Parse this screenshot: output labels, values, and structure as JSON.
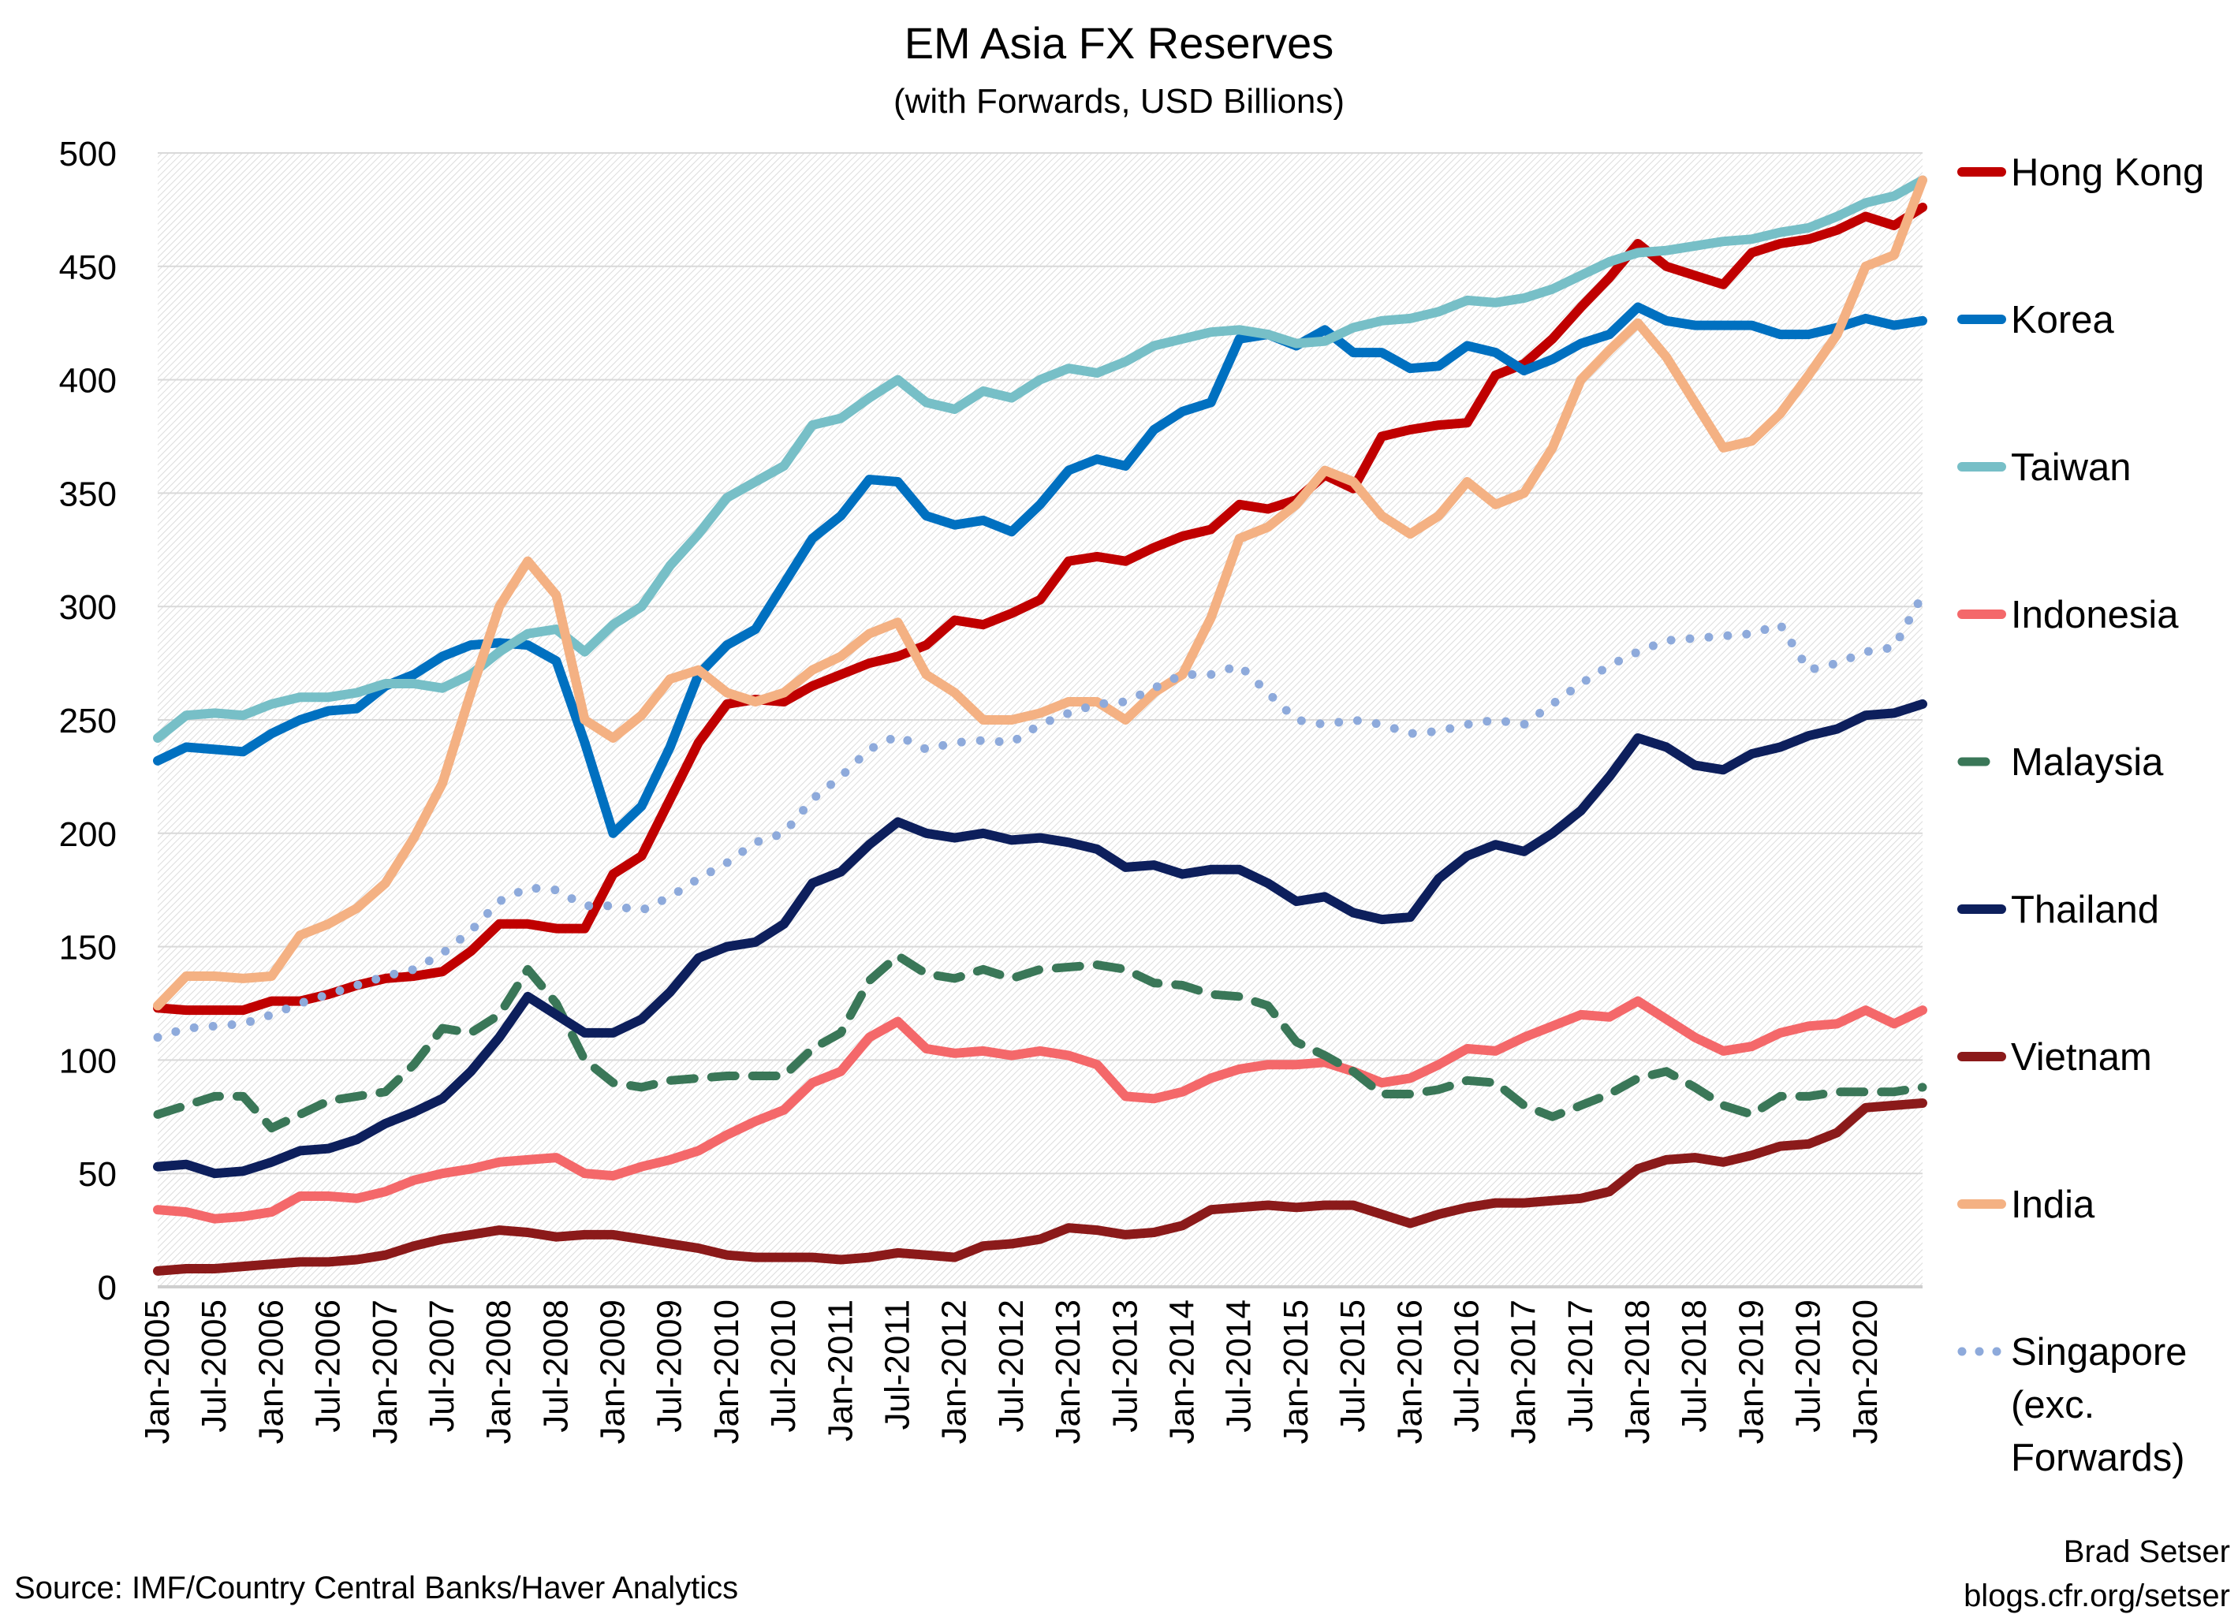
{
  "chart_data": {
    "type": "line",
    "title": "EM Asia FX Reserves",
    "subtitle": "(with Forwards, USD Billions)",
    "ylim": [
      0,
      500
    ],
    "yticks": [
      0,
      50,
      100,
      150,
      200,
      250,
      300,
      350,
      400,
      450,
      500
    ],
    "grid": true,
    "legend_position": "right",
    "xtick_labels": [
      "Jan-2005",
      "Jul-2005",
      "Jan-2006",
      "Jul-2006",
      "Jan-2007",
      "Jul-2007",
      "Jan-2008",
      "Jul-2008",
      "Jan-2009",
      "Jul-2009",
      "Jan-2010",
      "Jul-2010",
      "Jan-2011",
      "Jul-2011",
      "Jan-2012",
      "Jul-2012",
      "Jan-2013",
      "Jul-2013",
      "Jan-2014",
      "Jul-2014",
      "Jan-2015",
      "Jul-2015",
      "Jan-2016",
      "Jul-2016",
      "Jan-2017",
      "Jul-2017",
      "Jan-2018",
      "Jul-2018",
      "Jan-2019",
      "Jul-2019",
      "Jan-2020"
    ],
    "x": [
      "2005-01",
      "2005-04",
      "2005-07",
      "2005-10",
      "2006-01",
      "2006-04",
      "2006-07",
      "2006-10",
      "2007-01",
      "2007-04",
      "2007-07",
      "2007-10",
      "2008-01",
      "2008-04",
      "2008-07",
      "2008-10",
      "2009-01",
      "2009-04",
      "2009-07",
      "2009-10",
      "2010-01",
      "2010-04",
      "2010-07",
      "2010-10",
      "2011-01",
      "2011-04",
      "2011-07",
      "2011-10",
      "2012-01",
      "2012-04",
      "2012-07",
      "2012-10",
      "2013-01",
      "2013-04",
      "2013-07",
      "2013-10",
      "2014-01",
      "2014-04",
      "2014-07",
      "2014-10",
      "2015-01",
      "2015-04",
      "2015-07",
      "2015-10",
      "2016-01",
      "2016-04",
      "2016-07",
      "2016-10",
      "2017-01",
      "2017-04",
      "2017-07",
      "2017-10",
      "2018-01",
      "2018-04",
      "2018-07",
      "2018-10",
      "2019-01",
      "2019-04",
      "2019-07",
      "2019-10",
      "2020-01",
      "2020-04",
      "2020-07"
    ],
    "series": [
      {
        "name": "Hong Kong",
        "color": "#c00000",
        "style": "solid",
        "values": [
          123,
          122,
          122,
          122,
          126,
          126,
          129,
          133,
          136,
          137,
          139,
          148,
          160,
          160,
          158,
          158,
          182,
          190,
          215,
          240,
          257,
          259,
          258,
          265,
          270,
          275,
          278,
          283,
          294,
          292,
          297,
          303,
          320,
          322,
          320,
          326,
          331,
          334,
          345,
          343,
          347,
          358,
          352,
          375,
          378,
          380,
          381,
          402,
          407,
          418,
          432,
          445,
          460,
          450,
          446,
          442,
          456,
          460,
          462,
          466,
          472,
          468,
          476
        ]
      },
      {
        "name": "Korea",
        "color": "#0070c0",
        "style": "solid",
        "values": [
          232,
          238,
          237,
          236,
          244,
          250,
          254,
          255,
          265,
          270,
          278,
          283,
          284,
          283,
          276,
          240,
          200,
          212,
          238,
          270,
          283,
          290,
          310,
          330,
          340,
          356,
          355,
          340,
          336,
          338,
          333,
          345,
          360,
          365,
          362,
          378,
          386,
          390,
          418,
          420,
          415,
          422,
          412,
          412,
          405,
          406,
          415,
          412,
          404,
          409,
          416,
          420,
          432,
          426,
          424,
          424,
          424,
          420,
          420,
          423,
          427,
          424,
          426
        ]
      },
      {
        "name": "Taiwan",
        "color": "#77bfc7",
        "style": "solid",
        "values": [
          242,
          252,
          253,
          252,
          257,
          260,
          260,
          262,
          266,
          266,
          264,
          270,
          280,
          288,
          290,
          280,
          292,
          300,
          318,
          332,
          348,
          355,
          362,
          380,
          383,
          392,
          400,
          390,
          387,
          395,
          392,
          400,
          405,
          403,
          408,
          415,
          418,
          421,
          422,
          420,
          416,
          417,
          423,
          426,
          427,
          430,
          435,
          434,
          436,
          440,
          446,
          452,
          456,
          457,
          459,
          461,
          462,
          465,
          467,
          472,
          478,
          481,
          488
        ]
      },
      {
        "name": "Indonesia",
        "color": "#f4686a",
        "style": "solid",
        "values": [
          34,
          33,
          30,
          31,
          33,
          40,
          40,
          39,
          42,
          47,
          50,
          52,
          55,
          56,
          57,
          50,
          49,
          53,
          56,
          60,
          67,
          73,
          78,
          90,
          95,
          110,
          117,
          105,
          103,
          104,
          102,
          104,
          102,
          98,
          84,
          83,
          86,
          92,
          96,
          98,
          98,
          99,
          95,
          90,
          92,
          98,
          105,
          104,
          110,
          115,
          120,
          119,
          126,
          118,
          110,
          104,
          106,
          112,
          115,
          116,
          122,
          116,
          122
        ]
      },
      {
        "name": "Malaysia",
        "color": "#3a7758",
        "style": "dashed",
        "values": [
          76,
          80,
          84,
          84,
          70,
          76,
          82,
          84,
          86,
          98,
          114,
          112,
          120,
          140,
          125,
          100,
          90,
          88,
          91,
          92,
          93,
          93,
          93,
          105,
          112,
          135,
          146,
          138,
          136,
          140,
          136,
          140,
          141,
          142,
          140,
          134,
          133,
          129,
          128,
          124,
          108,
          102,
          95,
          85,
          85,
          87,
          91,
          90,
          80,
          75,
          80,
          85,
          92,
          95,
          88,
          80,
          76,
          84,
          84,
          86,
          86,
          86,
          88
        ]
      },
      {
        "name": "Thailand",
        "color": "#0d1f5c",
        "style": "solid",
        "values": [
          53,
          54,
          50,
          51,
          55,
          60,
          61,
          65,
          72,
          77,
          83,
          95,
          110,
          128,
          120,
          112,
          112,
          118,
          130,
          145,
          150,
          152,
          160,
          178,
          183,
          195,
          205,
          200,
          198,
          200,
          197,
          198,
          196,
          193,
          185,
          186,
          182,
          184,
          184,
          178,
          170,
          172,
          165,
          162,
          163,
          180,
          190,
          195,
          192,
          200,
          210,
          225,
          242,
          238,
          230,
          228,
          235,
          238,
          243,
          246,
          252,
          253,
          257
        ]
      },
      {
        "name": "Vietnam",
        "color": "#8b1a1a",
        "style": "solid",
        "values": [
          7,
          8,
          8,
          9,
          10,
          11,
          11,
          12,
          14,
          18,
          21,
          23,
          25,
          24,
          22,
          23,
          23,
          21,
          19,
          17,
          14,
          13,
          13,
          13,
          12,
          13,
          15,
          14,
          13,
          18,
          19,
          21,
          26,
          25,
          23,
          24,
          27,
          34,
          35,
          36,
          35,
          36,
          36,
          32,
          28,
          32,
          35,
          37,
          37,
          38,
          39,
          42,
          52,
          56,
          57,
          55,
          58,
          62,
          63,
          68,
          79,
          80,
          81
        ]
      },
      {
        "name": "India",
        "color": "#f4b183",
        "style": "solid",
        "values": [
          124,
          137,
          137,
          136,
          137,
          155,
          160,
          167,
          178,
          198,
          222,
          262,
          300,
          320,
          305,
          250,
          242,
          252,
          268,
          272,
          262,
          258,
          262,
          272,
          278,
          288,
          293,
          270,
          262,
          250,
          250,
          253,
          258,
          258,
          250,
          262,
          270,
          295,
          330,
          335,
          345,
          360,
          355,
          340,
          332,
          340,
          355,
          345,
          350,
          370,
          400,
          413,
          425,
          410,
          390,
          370,
          373,
          385,
          402,
          420,
          450,
          455,
          488
        ]
      },
      {
        "name": "Singapore (exc. Forwards)",
        "legend_lines": [
          "Singapore",
          "(exc.",
          "Forwards)"
        ],
        "color": "#8eaadb",
        "style": "dotted",
        "values": [
          110,
          114,
          115,
          116,
          120,
          125,
          129,
          133,
          137,
          140,
          147,
          157,
          170,
          176,
          175,
          168,
          168,
          166,
          172,
          180,
          187,
          196,
          200,
          215,
          225,
          237,
          243,
          237,
          240,
          241,
          240,
          248,
          253,
          257,
          258,
          264,
          270,
          270,
          274,
          262,
          250,
          248,
          250,
          248,
          244,
          245,
          248,
          250,
          248,
          257,
          266,
          274,
          280,
          285,
          286,
          287,
          288,
          292,
          272,
          275,
          280,
          282,
          305
        ]
      }
    ]
  },
  "footer": {
    "source": "Source: IMF/Country Central Banks/Haver Analytics",
    "author": "Brad Setser",
    "url": "blogs.cfr.org/setser"
  }
}
